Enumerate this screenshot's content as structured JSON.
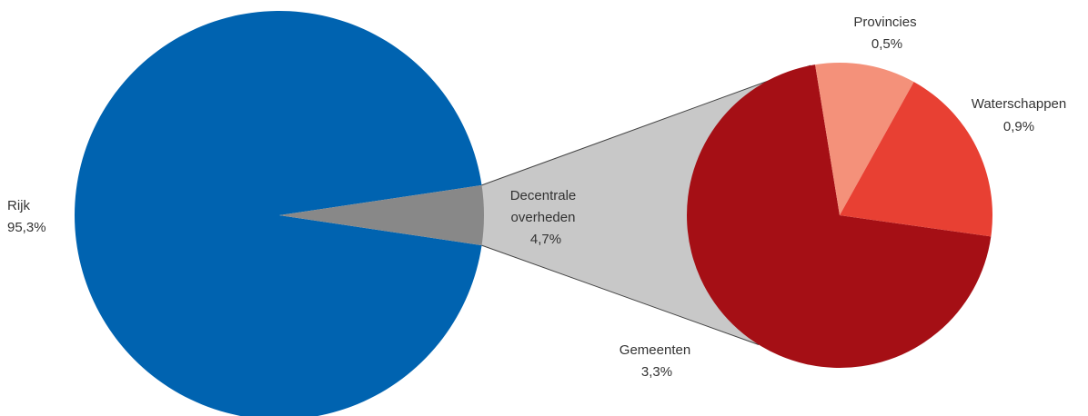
{
  "chart_data": {
    "type": "pie",
    "title": "",
    "main_pie": {
      "slices": [
        {
          "name": "Rijk",
          "value": 95.3,
          "label": "95,3%",
          "color": "#0063B0"
        },
        {
          "name_lines": [
            "Decentrale",
            "overheden"
          ],
          "value": 4.7,
          "label": "4,7%",
          "color": "#888888"
        }
      ]
    },
    "breakdown_pie": {
      "parent": "Decentrale overheden",
      "slices": [
        {
          "name": "Gemeenten",
          "value": 3.3,
          "label": "3,3%",
          "color": "#A50F15"
        },
        {
          "name": "Provincies",
          "value": 0.5,
          "label": "0,5%",
          "color": "#F4917A"
        },
        {
          "name": "Waterschappen",
          "value": 0.9,
          "label": "0,9%",
          "color": "#E84033"
        }
      ]
    },
    "connector_color": "#C8C8C8"
  }
}
